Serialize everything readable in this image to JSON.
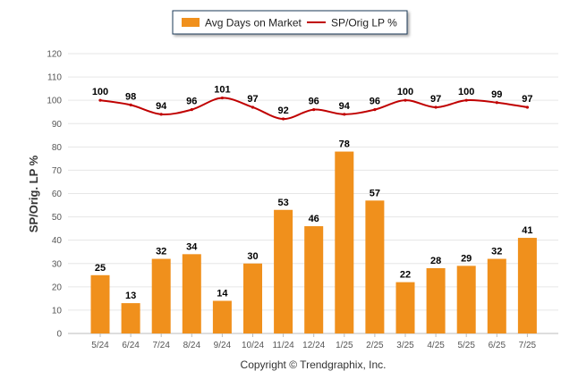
{
  "chart_data": {
    "type": "bar",
    "categories": [
      "5/24",
      "6/24",
      "7/24",
      "8/24",
      "9/24",
      "10/24",
      "11/24",
      "12/24",
      "1/25",
      "2/25",
      "3/25",
      "4/25",
      "5/25",
      "6/25",
      "7/25"
    ],
    "series": [
      {
        "name": "Avg Days on Market",
        "kind": "bar",
        "color": "#f0901c",
        "values": [
          25,
          13,
          32,
          34,
          14,
          30,
          53,
          46,
          78,
          57,
          22,
          28,
          29,
          32,
          41
        ]
      },
      {
        "name": "SP/Orig LP %",
        "kind": "line",
        "color": "#c00000",
        "values": [
          100,
          98,
          94,
          96,
          101,
          97,
          92,
          96,
          94,
          96,
          100,
          97,
          100,
          99,
          97
        ]
      }
    ],
    "ylabel": "SP/Orig. LP %",
    "ylim": [
      0,
      120
    ],
    "yticks": [
      0,
      10,
      20,
      30,
      40,
      50,
      60,
      70,
      80,
      90,
      100,
      110,
      120
    ],
    "grid": true,
    "legend_position": "top-center",
    "footer": "Copyright © Trendgraphix, Inc."
  }
}
